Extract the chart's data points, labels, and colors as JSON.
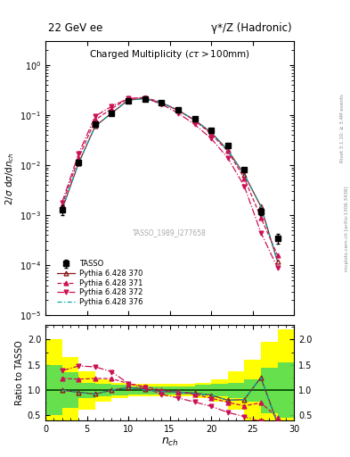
{
  "title_left": "22 GeV ee",
  "title_right": "γ*/Z (Hadronic)",
  "main_title": "Charged Multiplicity",
  "main_title_suffix": "(cτ > 100mm)",
  "ylabel_main": "2/σ dσ/dn_{ch}",
  "ylabel_ratio": "Ratio to TASSO",
  "xlabel": "n_{ch}",
  "ref_label": "TASSO_1989_I277658",
  "right_label": "mcplots.cern.ch [arXiv:1306.3436]",
  "rivet_label": "Rivet 3.1.10; ≥ 3.4M events",
  "tasso_x": [
    2,
    4,
    6,
    8,
    10,
    12,
    14,
    16,
    18,
    20,
    22,
    24,
    26,
    28
  ],
  "tasso_y": [
    0.0013,
    0.0115,
    0.065,
    0.11,
    0.19,
    0.21,
    0.18,
    0.13,
    0.085,
    0.05,
    0.025,
    0.008,
    0.0012,
    0.00035
  ],
  "tasso_yerr": [
    0.0003,
    0.0015,
    0.006,
    0.01,
    0.015,
    0.015,
    0.015,
    0.01,
    0.007,
    0.004,
    0.002,
    0.0008,
    0.0002,
    8e-05
  ],
  "p370_x": [
    2,
    4,
    6,
    8,
    10,
    12,
    14,
    16,
    18,
    20,
    22,
    24,
    26,
    28
  ],
  "p370_y": [
    0.0013,
    0.011,
    0.06,
    0.11,
    0.2,
    0.215,
    0.175,
    0.125,
    0.08,
    0.045,
    0.02,
    0.0065,
    0.0015,
    0.00012
  ],
  "p371_x": [
    2,
    4,
    6,
    8,
    10,
    12,
    14,
    16,
    18,
    20,
    22,
    24,
    26,
    28
  ],
  "p371_y": [
    0.0016,
    0.014,
    0.08,
    0.135,
    0.215,
    0.225,
    0.18,
    0.125,
    0.078,
    0.042,
    0.019,
    0.0055,
    0.0009,
    0.00016
  ],
  "p372_x": [
    2,
    4,
    6,
    8,
    10,
    12,
    14,
    16,
    18,
    20,
    22,
    24,
    26,
    28
  ],
  "p372_y": [
    0.0018,
    0.017,
    0.095,
    0.15,
    0.215,
    0.22,
    0.165,
    0.11,
    0.065,
    0.034,
    0.014,
    0.0038,
    0.00045,
    9e-05
  ],
  "p376_x": [
    2,
    4,
    6,
    8,
    10,
    12,
    14,
    16,
    18,
    20,
    22,
    24,
    26,
    28
  ],
  "p376_y": [
    0.0013,
    0.011,
    0.06,
    0.11,
    0.2,
    0.21,
    0.175,
    0.125,
    0.08,
    0.045,
    0.02,
    0.0065,
    0.0015,
    0.00012
  ],
  "color_tasso": "#000000",
  "color_370": "#8B1A1A",
  "color_371": "#CC1155",
  "color_372": "#CC1155",
  "color_376": "#00AAAA",
  "ylim_main": [
    1e-05,
    3.0
  ],
  "ylim_ratio": [
    0.4,
    2.3
  ],
  "xlim": [
    0,
    30
  ],
  "band_x_edges": [
    0,
    2,
    4,
    6,
    8,
    10,
    12,
    14,
    16,
    18,
    20,
    22,
    24,
    26,
    28,
    30
  ],
  "band_green_half": [
    0.5,
    0.35,
    0.15,
    0.12,
    0.1,
    0.08,
    0.08,
    0.08,
    0.08,
    0.1,
    0.12,
    0.15,
    0.22,
    0.45,
    0.55,
    0.55
  ],
  "band_yellow_half": [
    1.0,
    0.65,
    0.38,
    0.22,
    0.15,
    0.12,
    0.12,
    0.12,
    0.12,
    0.15,
    0.22,
    0.38,
    0.6,
    0.95,
    1.2,
    1.2
  ]
}
